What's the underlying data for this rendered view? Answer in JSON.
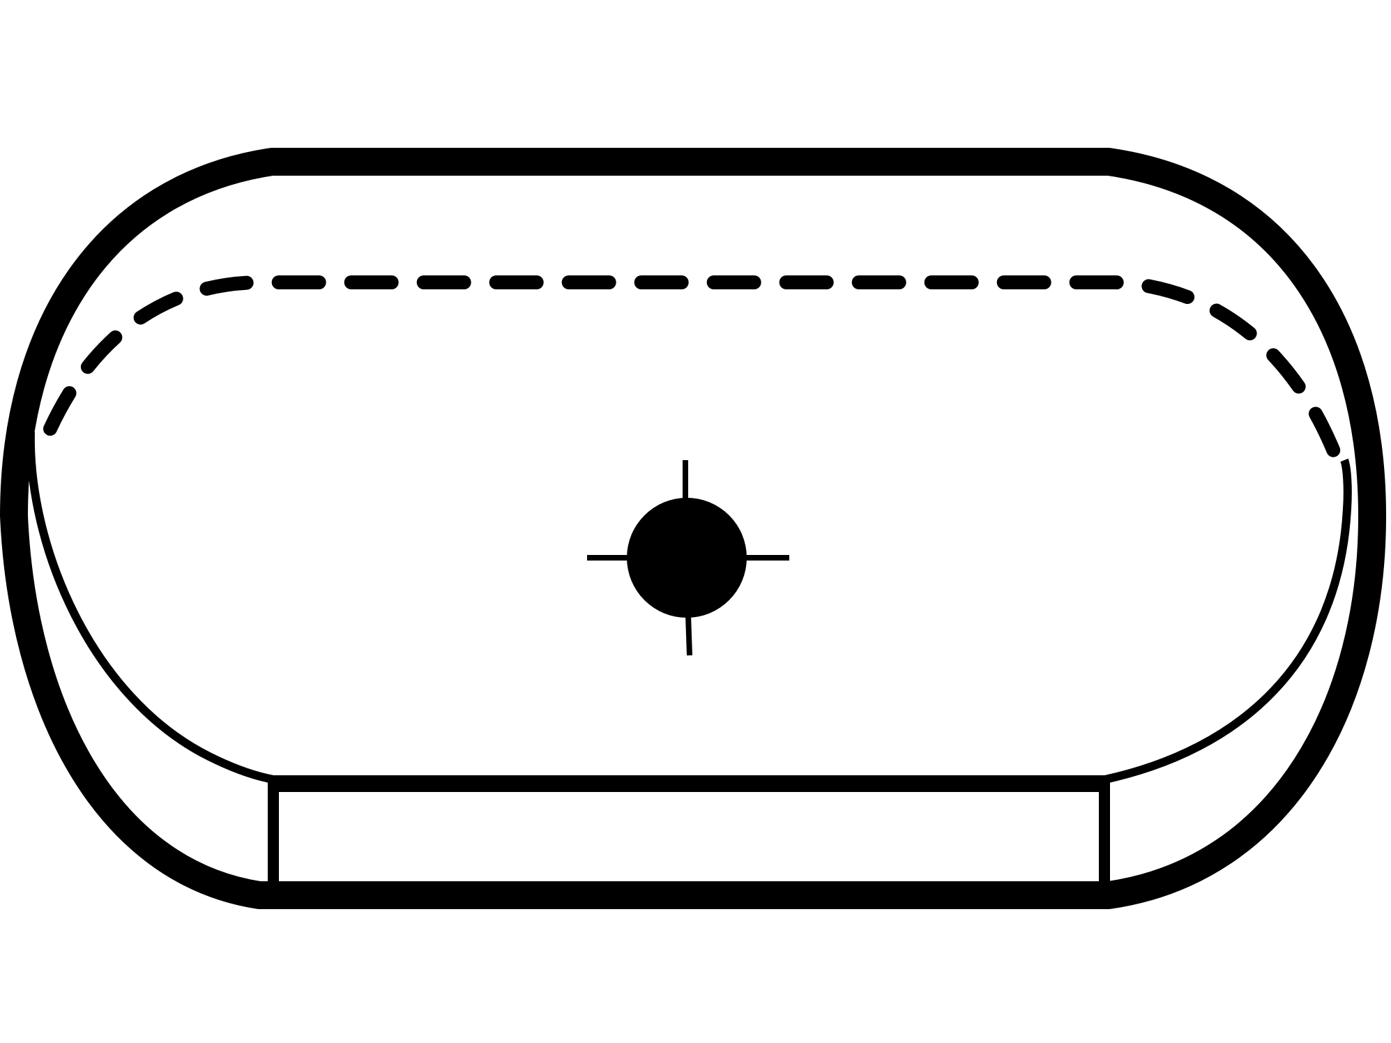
{
  "diagram": {
    "labels": [],
    "colors": {
      "stroke": "#000000",
      "background": "#ffffff"
    },
    "parts": [
      {
        "name": "outer-outline",
        "style": "solid-thick"
      },
      {
        "name": "hidden-edge-outline",
        "style": "dashed"
      },
      {
        "name": "bowl-rim",
        "style": "solid"
      },
      {
        "name": "front-panel",
        "style": "solid"
      },
      {
        "name": "drain-hole",
        "style": "filled-circle"
      },
      {
        "name": "centerline-cross",
        "style": "solid-thin"
      }
    ]
  }
}
